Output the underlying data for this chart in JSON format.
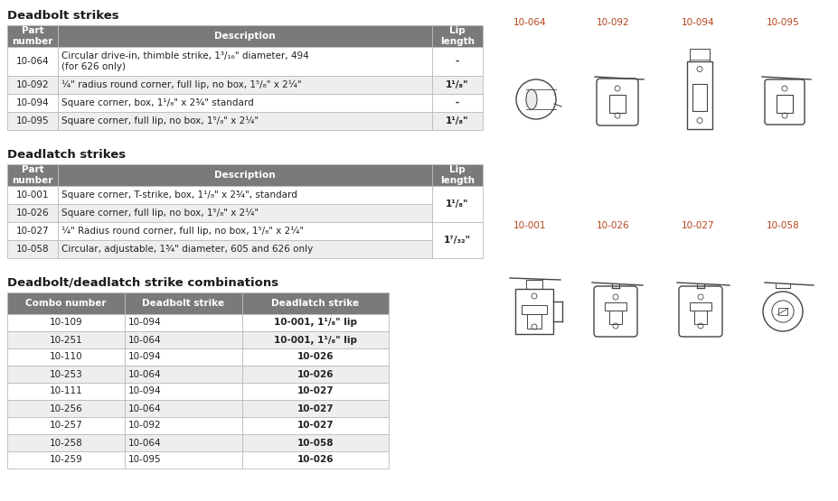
{
  "bg_color": "#ffffff",
  "header_color": "#7a7a7a",
  "header_text_color": "#ffffff",
  "row_odd_color": "#ffffff",
  "row_even_color": "#eeeeee",
  "border_color": "#bbbbbb",
  "title_color": "#1a1a1a",
  "diagram_label_color": "#b5451b",
  "deadbolt_title": "Deadbolt strikes",
  "deadbolt_headers": [
    "Part\nnumber",
    "Description",
    "Lip\nlength"
  ],
  "deadbolt_rows": [
    [
      "10-064",
      "Circular drive-in, thimble strike, 1³/₁₆\" diameter, 494\n(for 626 only)",
      "-"
    ],
    [
      "10-092",
      "¼\" radius round corner, full lip, no box, 1⁵/₈\" x 2¼\"",
      "1¹/₈\""
    ],
    [
      "10-094",
      "Square corner, box, 1¹/₈\" x 2¾\" standard",
      "-"
    ],
    [
      "10-095",
      "Square corner, full lip, no box, 1⁵/₈\" x 2¼\"",
      "1¹/₈\""
    ]
  ],
  "deadlatch_title": "Deadlatch strikes",
  "deadlatch_headers": [
    "Part\nnumber",
    "Description",
    "Lip\nlength"
  ],
  "deadlatch_rows": [
    [
      "10-001",
      "Square corner, T-strike, box, 1¹/₈\" x 2¾\", standard",
      "1¹/₈\""
    ],
    [
      "10-026",
      "Square corner, full lip, no box, 1⁵/₈\" x 2¼\"",
      ""
    ],
    [
      "10-027",
      "¼\" Radius round corner, full lip, no box, 1⁵/₈\" x 2¼\"",
      "1⁷/₃₂\""
    ],
    [
      "10-058",
      "Circular, adjustable, 1¾\" diameter, 605 and 626 only",
      ""
    ]
  ],
  "combo_title": "Deadbolt/deadlatch strike combinations",
  "combo_headers": [
    "Combo number",
    "Deadbolt strike",
    "Deadlatch strike"
  ],
  "combo_rows": [
    [
      "10-109",
      "10-094",
      "10-001, 1¹/₈\" lip"
    ],
    [
      "10-251",
      "10-064",
      "10-001, 1¹/₈\" lip"
    ],
    [
      "10-110",
      "10-094",
      "10-026"
    ],
    [
      "10-253",
      "10-064",
      "10-026"
    ],
    [
      "10-111",
      "10-094",
      "10-027"
    ],
    [
      "10-256",
      "10-064",
      "10-027"
    ],
    [
      "10-257",
      "10-092",
      "10-027"
    ],
    [
      "10-258",
      "10-064",
      "10-058"
    ],
    [
      "10-259",
      "10-095",
      "10-026"
    ]
  ],
  "diagram_labels_row1": [
    "10-064",
    "10-092",
    "10-094",
    "10-095"
  ],
  "diagram_labels_row2": [
    "10-001",
    "10-026",
    "10-027",
    "10-058"
  ]
}
